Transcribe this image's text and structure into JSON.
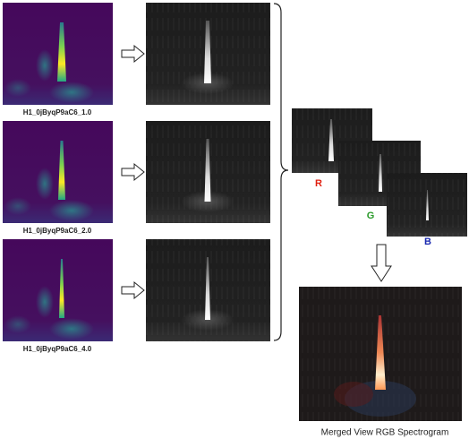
{
  "spectrograms": [
    {
      "label": "H1_0jByqP9aC6_1.0"
    },
    {
      "label": "H1_0jByqP9aC6_2.0"
    },
    {
      "label": "H1_0jByqP9aC6_4.0"
    }
  ],
  "channels": [
    "R",
    "G",
    "B"
  ],
  "merged_caption": "Merged View RGB Spectrogram"
}
